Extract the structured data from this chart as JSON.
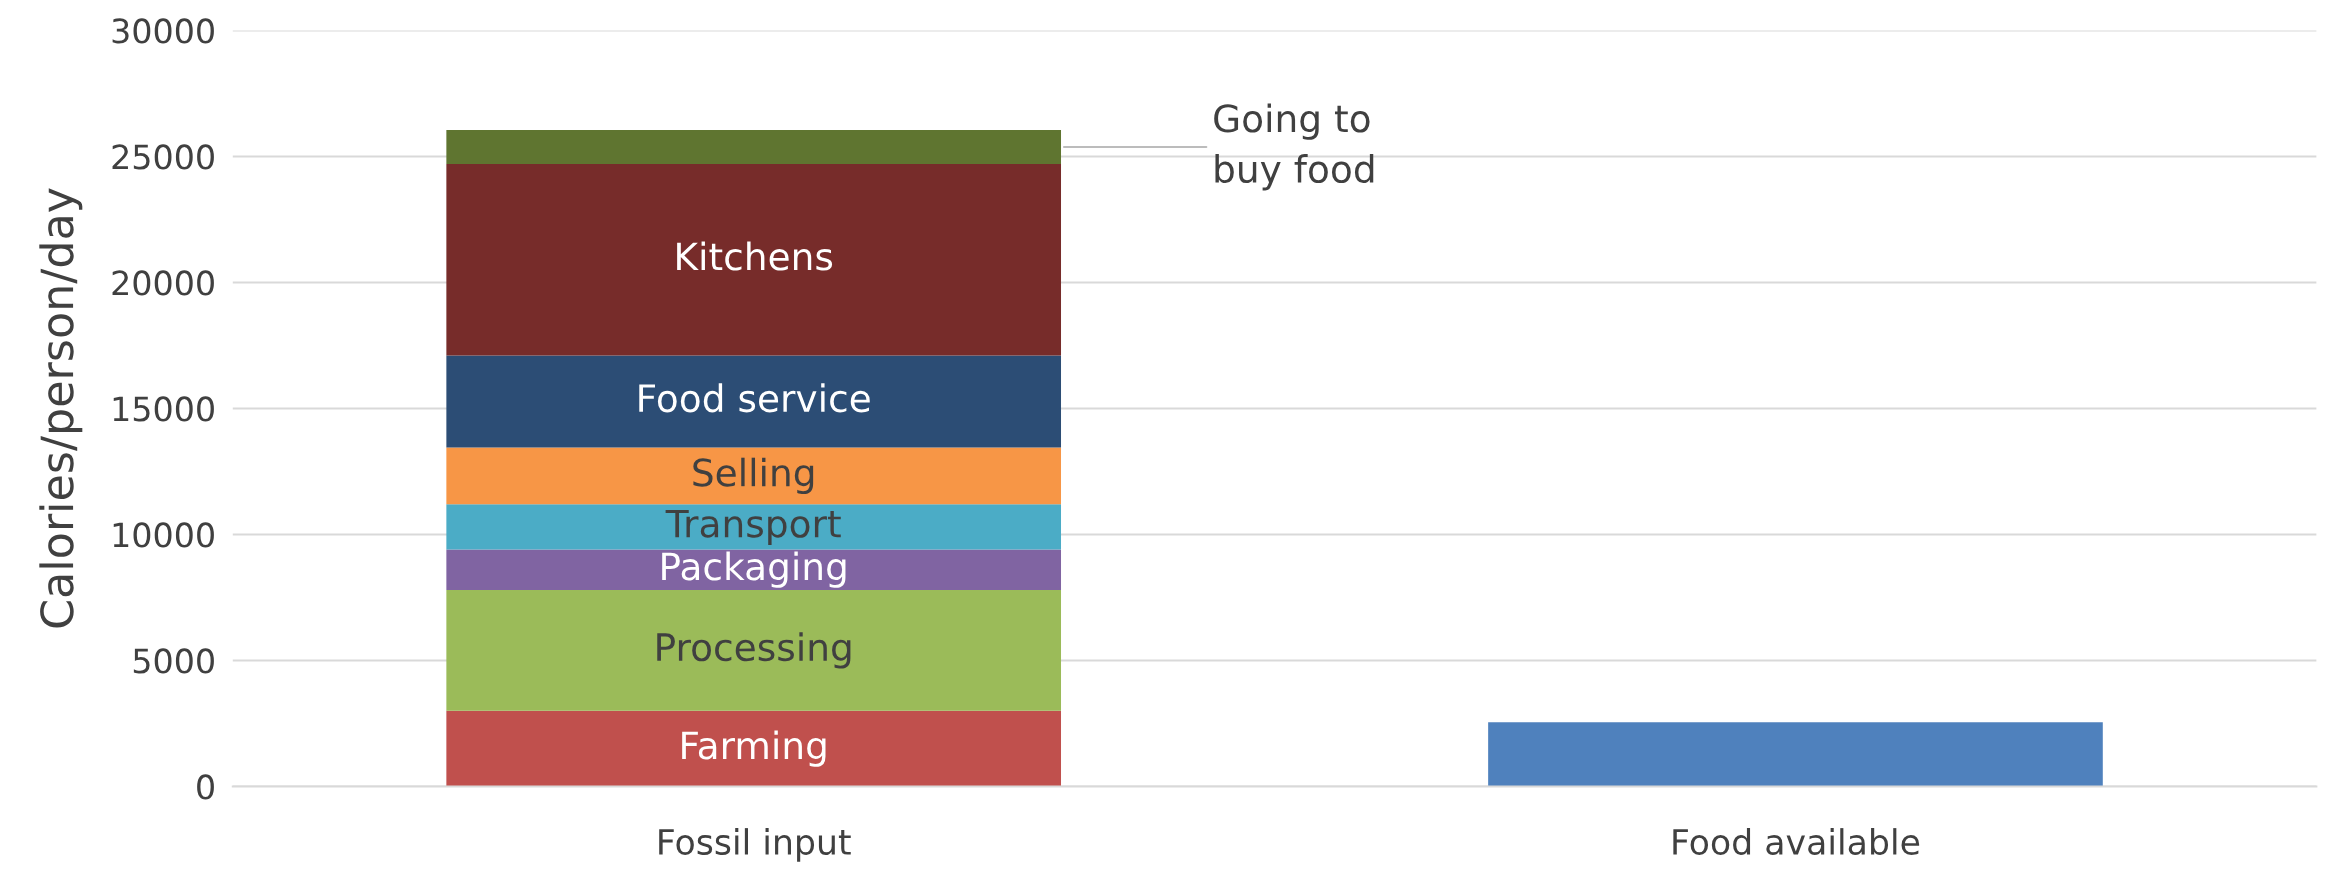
{
  "chart_data": {
    "type": "bar",
    "stacked": true,
    "ylabel": "Calories/person/day",
    "categories": [
      "Fossil input",
      "Food available"
    ],
    "series": [
      {
        "name": "Farming",
        "color": "#c0504d",
        "values": [
          3000,
          null
        ]
      },
      {
        "name": "Processing",
        "color": "#9bbb59",
        "values": [
          4800,
          null
        ]
      },
      {
        "name": "Packaging",
        "color": "#8064a2",
        "values": [
          1600,
          null
        ]
      },
      {
        "name": "Transport",
        "color": "#4bacc6",
        "values": [
          1800,
          null
        ]
      },
      {
        "name": "Selling",
        "color": "#f79646",
        "values": [
          2250,
          null
        ]
      },
      {
        "name": "Food service",
        "color": "#2c4d75",
        "values": [
          3650,
          null
        ]
      },
      {
        "name": "Kitchens",
        "color": "#772c2a",
        "values": [
          7600,
          null
        ]
      },
      {
        "name": "Going to\nbuy food",
        "color": "#5f7530",
        "values": [
          1350,
          null
        ]
      },
      {
        "color": "#4f81bd",
        "values": [
          null,
          2550
        ]
      }
    ],
    "ylim": [
      0,
      30000
    ],
    "yticks": [
      0,
      5000,
      10000,
      15000,
      20000,
      25000,
      30000
    ],
    "grid": "y",
    "legend": false
  }
}
